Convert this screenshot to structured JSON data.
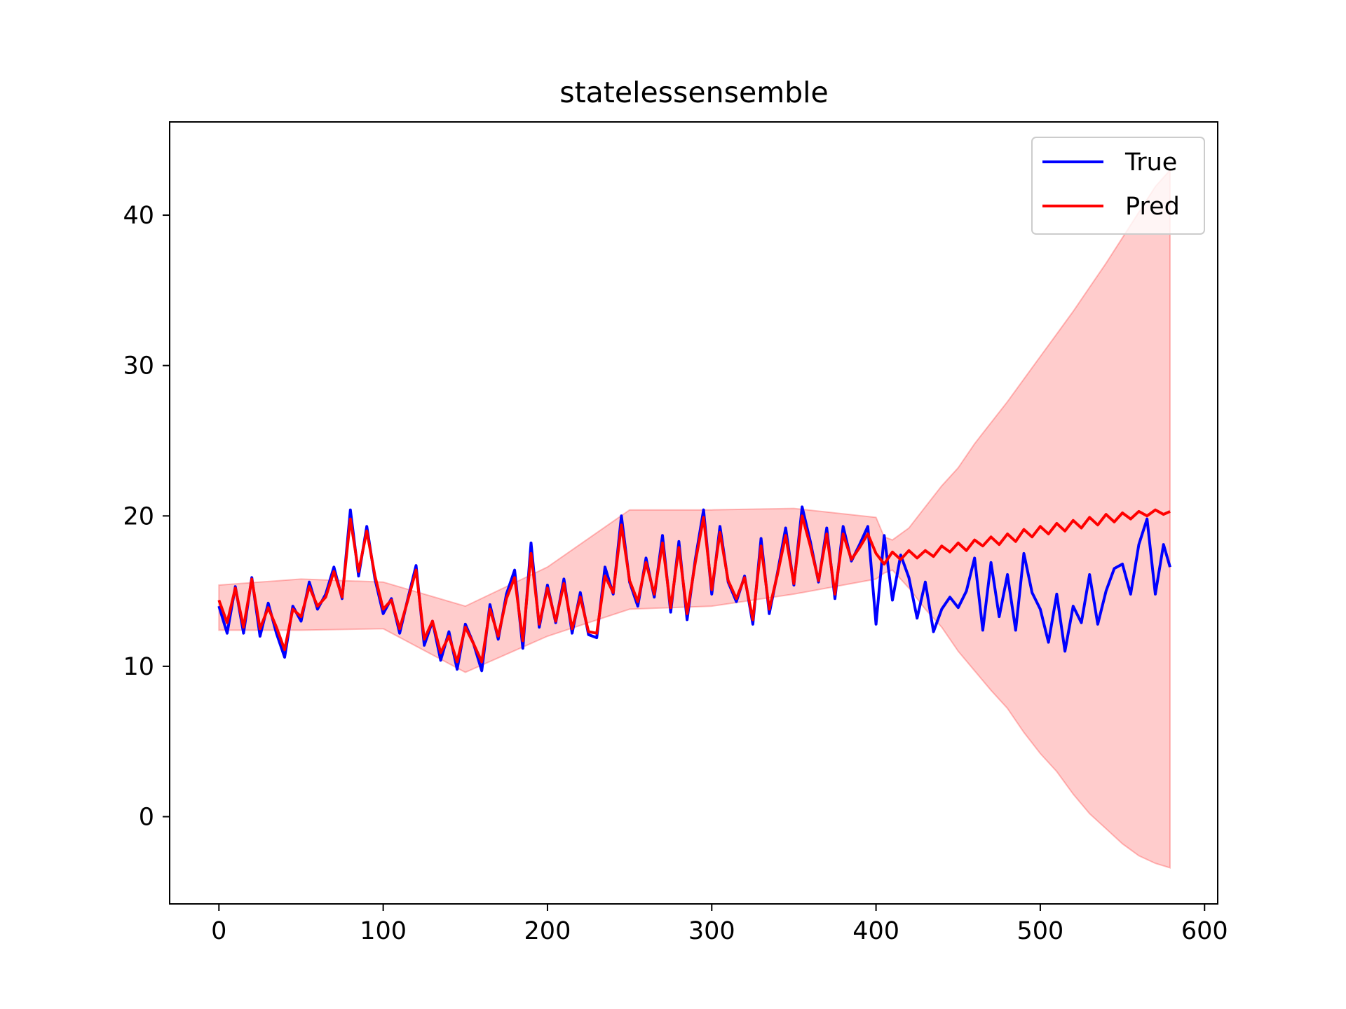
{
  "chart_data": {
    "type": "line",
    "title": "statelessensemble",
    "xlabel": "",
    "ylabel": "",
    "xlim": [
      -30,
      608
    ],
    "ylim": [
      -5.8,
      46.2
    ],
    "grid": false,
    "legend_position": "top-right",
    "x_ticks": [
      0,
      100,
      200,
      300,
      400,
      500,
      600
    ],
    "y_ticks": [
      0,
      10,
      20,
      30,
      40
    ],
    "x_tick_labels": [
      "0",
      "100",
      "200",
      "300",
      "400",
      "500",
      "600"
    ],
    "y_tick_labels": [
      "0",
      "10",
      "20",
      "30",
      "40"
    ],
    "series": [
      {
        "name": "True",
        "color": "#0000ff",
        "x": [
          0,
          5,
          10,
          15,
          20,
          25,
          30,
          35,
          40,
          45,
          50,
          55,
          60,
          65,
          70,
          75,
          80,
          85,
          90,
          95,
          100,
          105,
          110,
          115,
          120,
          125,
          130,
          135,
          140,
          145,
          150,
          155,
          160,
          165,
          170,
          175,
          180,
          185,
          190,
          195,
          200,
          205,
          210,
          215,
          220,
          225,
          230,
          235,
          240,
          245,
          250,
          255,
          260,
          265,
          270,
          275,
          280,
          285,
          290,
          295,
          300,
          305,
          310,
          315,
          320,
          325,
          330,
          335,
          340,
          345,
          350,
          355,
          360,
          365,
          370,
          375,
          380,
          385,
          390,
          395,
          400,
          405,
          410,
          415,
          420,
          425,
          430,
          435,
          440,
          445,
          450,
          455,
          460,
          465,
          470,
          475,
          480,
          485,
          490,
          495,
          500,
          505,
          510,
          515,
          520,
          525,
          530,
          535,
          540,
          545,
          550,
          555,
          560,
          565,
          570,
          575,
          579
        ],
        "y": [
          14.0,
          12.2,
          15.3,
          12.2,
          15.9,
          12.0,
          14.2,
          12.2,
          10.6,
          14.0,
          13.0,
          15.6,
          13.8,
          14.8,
          16.6,
          14.5,
          20.4,
          16.0,
          19.3,
          15.8,
          13.5,
          14.5,
          12.2,
          14.5,
          16.7,
          11.4,
          13.0,
          10.4,
          12.3,
          9.8,
          12.8,
          11.5,
          9.7,
          14.1,
          11.8,
          14.8,
          16.4,
          11.2,
          18.2,
          12.6,
          15.4,
          12.9,
          15.8,
          12.2,
          14.9,
          12.1,
          11.9,
          16.6,
          14.8,
          20.0,
          15.6,
          14.0,
          17.2,
          14.6,
          18.7,
          13.6,
          18.3,
          13.1,
          17.1,
          20.4,
          14.8,
          19.3,
          15.6,
          14.3,
          16.0,
          12.8,
          18.5,
          13.5,
          16.2,
          19.2,
          15.4,
          20.6,
          18.3,
          15.6,
          19.2,
          14.5,
          19.3,
          17.0,
          18.1,
          19.3,
          12.8,
          18.7,
          14.4,
          17.4,
          15.9,
          13.2,
          15.6,
          12.3,
          13.8,
          14.6,
          13.9,
          15.0,
          17.2,
          12.4,
          16.9,
          13.3,
          16.1,
          12.4,
          17.5,
          14.9,
          13.8,
          11.6,
          14.8,
          11.0,
          14.0,
          12.9,
          16.1,
          12.8,
          15.0,
          16.5,
          16.8,
          14.8,
          18.1,
          19.8,
          14.8,
          18.1,
          16.6
        ]
      },
      {
        "name": "Pred",
        "color": "#ff0000",
        "x": [
          0,
          5,
          10,
          15,
          20,
          25,
          30,
          35,
          40,
          45,
          50,
          55,
          60,
          65,
          70,
          75,
          80,
          85,
          90,
          95,
          100,
          105,
          110,
          115,
          120,
          125,
          130,
          135,
          140,
          145,
          150,
          155,
          160,
          165,
          170,
          175,
          180,
          185,
          190,
          195,
          200,
          205,
          210,
          215,
          220,
          225,
          230,
          235,
          240,
          245,
          250,
          255,
          260,
          265,
          270,
          275,
          280,
          285,
          290,
          295,
          300,
          305,
          310,
          315,
          320,
          325,
          330,
          335,
          340,
          345,
          350,
          355,
          360,
          365,
          370,
          375,
          380,
          385,
          390,
          395,
          400,
          405,
          410,
          415,
          420,
          425,
          430,
          435,
          440,
          445,
          450,
          455,
          460,
          465,
          470,
          475,
          480,
          485,
          490,
          495,
          500,
          505,
          510,
          515,
          520,
          525,
          530,
          535,
          540,
          545,
          550,
          555,
          560,
          565,
          570,
          575,
          579
        ],
        "y": [
          14.4,
          12.9,
          15.2,
          12.6,
          15.8,
          12.5,
          13.9,
          12.6,
          11.1,
          13.8,
          13.3,
          15.3,
          14.0,
          14.6,
          16.3,
          14.6,
          19.8,
          16.3,
          19.0,
          16.0,
          13.8,
          14.4,
          12.5,
          14.4,
          16.4,
          11.8,
          13.0,
          10.9,
          12.0,
          10.3,
          12.6,
          11.5,
          10.3,
          13.8,
          12.0,
          14.5,
          15.9,
          11.7,
          17.5,
          12.8,
          15.2,
          13.0,
          15.5,
          12.5,
          14.6,
          12.3,
          12.2,
          16.0,
          14.9,
          19.4,
          15.7,
          14.3,
          16.9,
          14.8,
          18.2,
          13.9,
          17.9,
          13.5,
          16.9,
          19.9,
          15.1,
          18.9,
          15.7,
          14.5,
          15.9,
          13.1,
          18.0,
          13.8,
          16.1,
          18.7,
          15.5,
          20.0,
          18.0,
          15.7,
          18.8,
          14.8,
          18.8,
          17.1,
          17.9,
          18.8,
          17.5,
          16.8,
          17.6,
          17.1,
          17.7,
          17.2,
          17.7,
          17.3,
          18.0,
          17.6,
          18.2,
          17.7,
          18.4,
          18.0,
          18.6,
          18.1,
          18.8,
          18.3,
          19.1,
          18.6,
          19.3,
          18.8,
          19.5,
          19.0,
          19.7,
          19.2,
          19.9,
          19.4,
          20.1,
          19.6,
          20.2,
          19.8,
          20.3,
          20.0,
          20.4,
          20.1,
          20.3
        ]
      }
    ],
    "band": {
      "color": "#ff0000",
      "opacity": 0.2,
      "x": [
        0,
        50,
        100,
        150,
        200,
        250,
        300,
        350,
        400,
        405,
        410,
        420,
        430,
        440,
        450,
        460,
        470,
        480,
        490,
        500,
        510,
        520,
        530,
        540,
        550,
        560,
        570,
        579
      ],
      "upper": [
        15.4,
        15.8,
        15.6,
        14.0,
        16.6,
        20.4,
        20.4,
        20.5,
        19.9,
        18.6,
        18.4,
        19.2,
        20.6,
        22.0,
        23.2,
        24.8,
        26.2,
        27.6,
        29.1,
        30.6,
        32.1,
        33.6,
        35.2,
        36.8,
        38.5,
        40.2,
        41.9,
        43.0
      ],
      "lower": [
        12.4,
        12.4,
        12.5,
        9.6,
        12.0,
        13.8,
        14.0,
        14.8,
        15.8,
        16.2,
        16.4,
        15.2,
        13.8,
        12.6,
        11.0,
        9.7,
        8.4,
        7.2,
        5.6,
        4.2,
        3.0,
        1.5,
        0.2,
        -0.8,
        -1.8,
        -2.6,
        -3.1,
        -3.4
      ]
    }
  }
}
